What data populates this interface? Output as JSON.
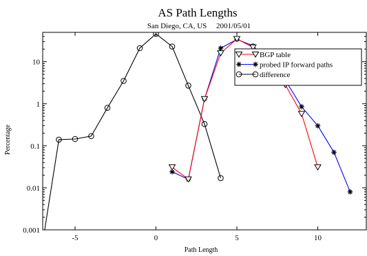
{
  "chart_data": {
    "type": "line",
    "title": "AS Path Lengths",
    "subtitle": "San Diego, CA, US     2001/05/01",
    "xlabel": "Path Length",
    "ylabel": "Percentage",
    "xlim": [
      -7,
      13
    ],
    "ylim": [
      0.001,
      50
    ],
    "yscale": "log",
    "grid": false,
    "legend_position": "top-right",
    "x_ticks": [
      -5,
      0,
      5,
      10
    ],
    "y_ticks": [
      {
        "value": 0.001,
        "label": "0.001"
      },
      {
        "value": 0.01,
        "label": "0.01"
      },
      {
        "value": 0.1,
        "label": "0.1"
      },
      {
        "value": 1,
        "label": "1"
      },
      {
        "value": 10,
        "label": "10"
      }
    ],
    "series": [
      {
        "name": "BGP table",
        "color": "#ff0000",
        "marker": "triangle-down",
        "x": [
          1,
          2,
          3,
          4,
          5,
          6,
          7,
          8,
          9,
          10
        ],
        "y": [
          0.031,
          0.016,
          1.3,
          16,
          35,
          22,
          9,
          2.8,
          0.58,
          0.031
        ]
      },
      {
        "name": "probed IP forward paths",
        "color": "#0000ff",
        "marker": "asterisk",
        "x": [
          1,
          2,
          3,
          4,
          5,
          6,
          7,
          8,
          9,
          10,
          11,
          12
        ],
        "y": [
          0.024,
          0.016,
          1.3,
          21,
          34,
          24,
          9,
          3.6,
          0.85,
          0.3,
          0.07,
          0.008
        ]
      },
      {
        "name": "difference",
        "color": "#000000",
        "marker": "circle",
        "x": [
          -7,
          -6,
          -5,
          -4,
          -3,
          -2,
          -1,
          0,
          1,
          2,
          3,
          4
        ],
        "y": [
          0.0005,
          0.14,
          0.145,
          0.17,
          0.8,
          3.5,
          21,
          46,
          23,
          2.7,
          0.33,
          0.017
        ]
      }
    ]
  }
}
